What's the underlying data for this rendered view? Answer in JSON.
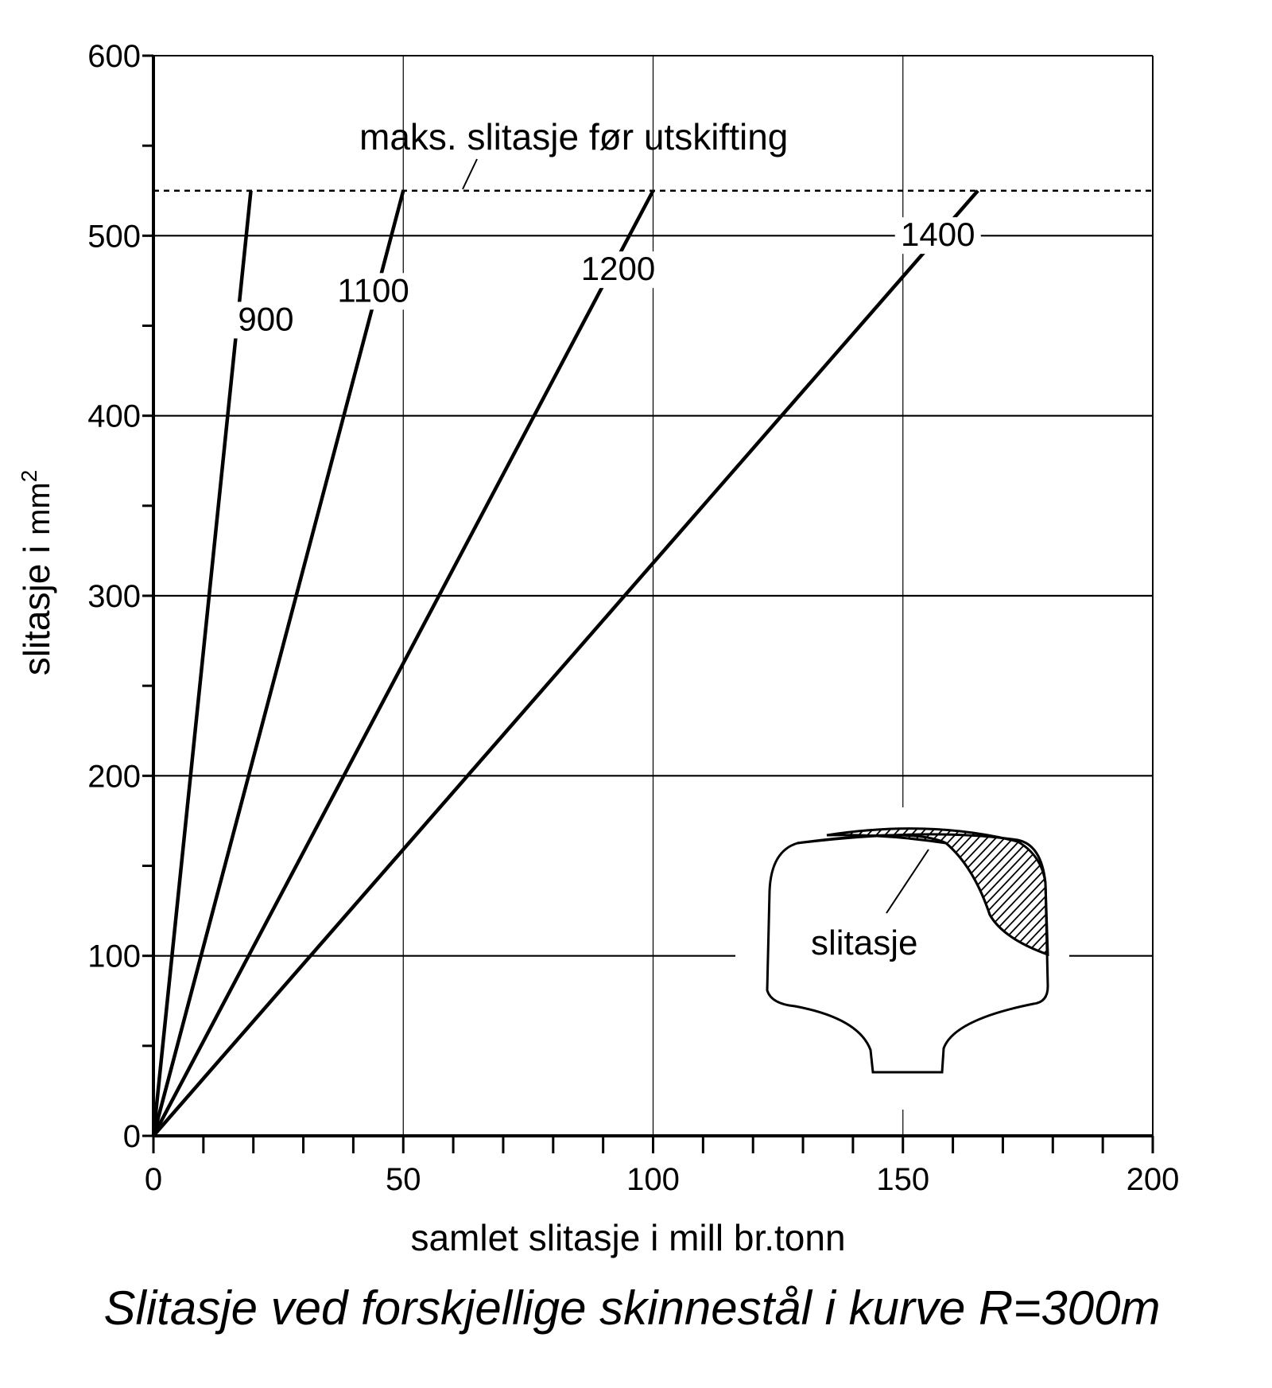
{
  "caption": "Slitasje ved forskjellige skinnestål i kurve R=300m",
  "chart_data": {
    "type": "line",
    "title": "",
    "xlabel": "samlet slitasje i mill br.tonn",
    "ylabel_main": "slitasje i ",
    "ylabel_unit": "mm",
    "ylabel_sup": "2",
    "xlim": [
      0,
      200
    ],
    "ylim": [
      0,
      600
    ],
    "x_ticks": [
      0,
      50,
      100,
      150,
      200
    ],
    "y_ticks": [
      0,
      100,
      200,
      300,
      400,
      500,
      600
    ],
    "grid": true,
    "series": [
      {
        "name": "900",
        "x": [
          0,
          19.5
        ],
        "y": [
          0,
          525
        ]
      },
      {
        "name": "1100",
        "x": [
          0,
          50
        ],
        "y": [
          0,
          525
        ]
      },
      {
        "name": "1200",
        "x": [
          0,
          100
        ],
        "y": [
          0,
          525
        ]
      },
      {
        "name": "1400",
        "x": [
          0,
          165
        ],
        "y": [
          0,
          525
        ]
      }
    ],
    "threshold": {
      "y": 525,
      "label": "maks. slitasje før utskifting",
      "style": "dashed"
    },
    "inset": {
      "label": "slitasje"
    }
  }
}
